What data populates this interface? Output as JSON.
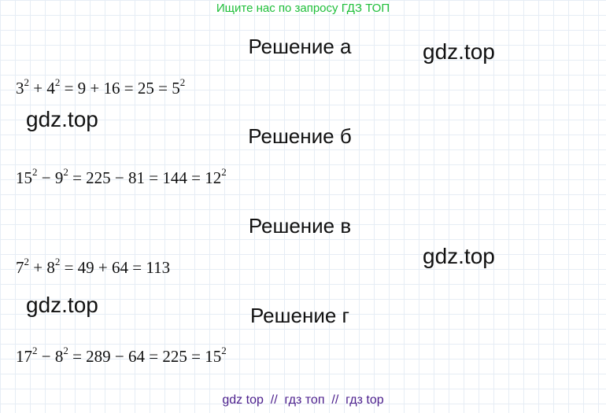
{
  "banner": "Ищите нас по запросу ГДЗ ТОП",
  "watermark": "gdz.top",
  "solutions": [
    {
      "title": "Решение а",
      "eq": {
        "a": "3",
        "p1": "2",
        "op1": " + ",
        "b": "4",
        "p2": "2",
        "rest": " = 9 + 16 = 25 = 5",
        "p3": "2"
      }
    },
    {
      "title": "Решение б",
      "eq": {
        "a": "15",
        "p1": "2",
        "op1": " − ",
        "b": "9",
        "p2": "2",
        "rest": " = 225 − 81 = 144 = 12",
        "p3": "2"
      }
    },
    {
      "title": "Решение в",
      "eq": {
        "a": "7",
        "p1": "2",
        "op1": " + ",
        "b": "8",
        "p2": "2",
        "rest": " = 49 + 64 = 113"
      }
    },
    {
      "title": "Решение г",
      "eq": {
        "a": "17",
        "p1": "2",
        "op1": " − ",
        "b": "8",
        "p2": "2",
        "rest": " = 289 − 64 = 225 = 15",
        "p3": "2"
      }
    }
  ],
  "footer": "gdz top  //  гдз топ  //  гдз top"
}
